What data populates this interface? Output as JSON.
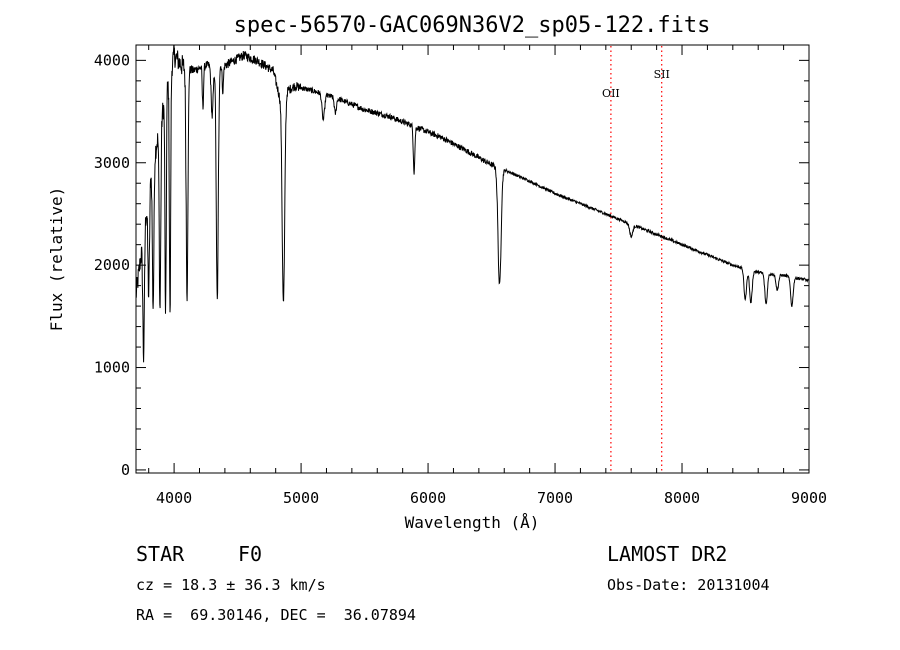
{
  "chart_data": {
    "type": "line",
    "title": "spec-56570-GAC069N36V2_sp05-122.fits",
    "xlabel": "Wavelength (Å)",
    "ylabel": "Flux (relative)",
    "xlim": [
      3700,
      9000
    ],
    "ylim": [
      -30,
      4150
    ],
    "x_ticks": [
      4000,
      5000,
      6000,
      7000,
      8000,
      9000
    ],
    "y_ticks": [
      0,
      1000,
      2000,
      3000,
      4000
    ],
    "grid": false,
    "line_color": "#000000",
    "marker_color": "#ff0000",
    "continuum": [
      [
        3700,
        1700
      ],
      [
        3760,
        2300
      ],
      [
        3820,
        2900
      ],
      [
        3880,
        3300
      ],
      [
        3940,
        3700
      ],
      [
        4000,
        4050
      ],
      [
        4060,
        3950
      ],
      [
        4150,
        3900
      ],
      [
        4250,
        3950
      ],
      [
        4400,
        3950
      ],
      [
        4550,
        4050
      ],
      [
        4650,
        4000
      ],
      [
        4780,
        3900
      ],
      [
        4830,
        3650
      ],
      [
        4950,
        3750
      ],
      [
        5100,
        3700
      ],
      [
        5300,
        3620
      ],
      [
        5500,
        3520
      ],
      [
        5700,
        3450
      ],
      [
        5900,
        3350
      ],
      [
        6100,
        3250
      ],
      [
        6300,
        3120
      ],
      [
        6500,
        2980
      ],
      [
        6620,
        2920
      ],
      [
        6800,
        2820
      ],
      [
        7000,
        2700
      ],
      [
        7200,
        2600
      ],
      [
        7400,
        2500
      ],
      [
        7600,
        2400
      ],
      [
        7800,
        2300
      ],
      [
        8000,
        2200
      ],
      [
        8200,
        2100
      ],
      [
        8400,
        2000
      ],
      [
        8600,
        1930
      ],
      [
        8800,
        1900
      ],
      [
        9000,
        1850
      ]
    ],
    "absorption_lines": [
      {
        "x": 3760,
        "depth": 1200,
        "width": 6
      },
      {
        "x": 3800,
        "depth": 1000,
        "width": 6
      },
      {
        "x": 3835,
        "depth": 1400,
        "width": 6
      },
      {
        "x": 3889,
        "depth": 1800,
        "width": 6
      },
      {
        "x": 3933,
        "depth": 2200,
        "width": 5
      },
      {
        "x": 3968,
        "depth": 2400,
        "width": 5
      },
      {
        "x": 4102,
        "depth": 2250,
        "width": 7
      },
      {
        "x": 4227,
        "depth": 400,
        "width": 5
      },
      {
        "x": 4300,
        "depth": 500,
        "width": 8
      },
      {
        "x": 4340,
        "depth": 2300,
        "width": 8
      },
      {
        "x": 4384,
        "depth": 250,
        "width": 5
      },
      {
        "x": 4861,
        "depth": 2050,
        "width": 10
      },
      {
        "x": 5175,
        "depth": 250,
        "width": 10
      },
      {
        "x": 5270,
        "depth": 150,
        "width": 8
      },
      {
        "x": 5890,
        "depth": 450,
        "width": 6
      },
      {
        "x": 6563,
        "depth": 1150,
        "width": 12
      },
      {
        "x": 7600,
        "depth": 120,
        "width": 12
      },
      {
        "x": 8498,
        "depth": 300,
        "width": 10
      },
      {
        "x": 8542,
        "depth": 320,
        "width": 10
      },
      {
        "x": 8662,
        "depth": 300,
        "width": 10
      },
      {
        "x": 8750,
        "depth": 150,
        "width": 10
      },
      {
        "x": 8865,
        "depth": 280,
        "width": 10
      }
    ],
    "annotations": [
      {
        "label": "OII",
        "x": 7440
      },
      {
        "label": "SII",
        "x": 7840
      }
    ]
  },
  "info": {
    "class_label": "STAR",
    "subclass_label": "F0",
    "survey_label": "LAMOST DR2",
    "redshift_text": "cz = 18.3 ± 36.3 km/s",
    "obs_date_text": "Obs-Date: 20131004",
    "coords_text": "RA =  69.30146, DEC =  36.07894"
  }
}
